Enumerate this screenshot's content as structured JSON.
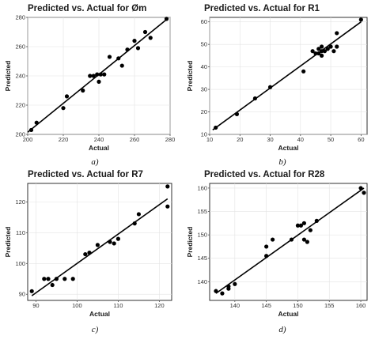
{
  "chart_data": [
    {
      "type": "scatter",
      "title": "Predicted vs. Actual for Øm",
      "xlabel": "Actual",
      "ylabel": "Predicted",
      "caption": "a)",
      "xlim": [
        200,
        280
      ],
      "ylim": [
        200,
        280
      ],
      "xticks": [
        200,
        220,
        240,
        260,
        280
      ],
      "yticks": [
        200,
        220,
        240,
        260,
        280
      ],
      "xticklabels": [
        "200",
        "220",
        "240",
        "260",
        "280"
      ],
      "yticklabels": [
        "200",
        "220",
        "240",
        "260",
        "280"
      ],
      "grid": true,
      "fit_line": {
        "x": [
          200,
          279
        ],
        "y": [
          201.5,
          279.5
        ]
      },
      "points": [
        {
          "x": 202,
          "y": 203
        },
        {
          "x": 205,
          "y": 208
        },
        {
          "x": 220,
          "y": 218
        },
        {
          "x": 222,
          "y": 226
        },
        {
          "x": 231,
          "y": 230
        },
        {
          "x": 235,
          "y": 240
        },
        {
          "x": 237,
          "y": 240
        },
        {
          "x": 239,
          "y": 241
        },
        {
          "x": 240,
          "y": 236
        },
        {
          "x": 241,
          "y": 241
        },
        {
          "x": 243,
          "y": 241
        },
        {
          "x": 246,
          "y": 253
        },
        {
          "x": 251,
          "y": 252
        },
        {
          "x": 253,
          "y": 247
        },
        {
          "x": 256,
          "y": 258
        },
        {
          "x": 260,
          "y": 264
        },
        {
          "x": 262,
          "y": 259
        },
        {
          "x": 266,
          "y": 270
        },
        {
          "x": 269,
          "y": 266
        },
        {
          "x": 278,
          "y": 279
        }
      ]
    },
    {
      "type": "scatter",
      "title": "Predicted vs. Actual for R1",
      "xlabel": "Actual",
      "ylabel": "Predicted",
      "caption": "b)",
      "xlim": [
        10,
        62
      ],
      "ylim": [
        10,
        62
      ],
      "xticks": [
        10,
        20,
        30,
        40,
        50,
        60
      ],
      "yticks": [
        10,
        20,
        30,
        40,
        50,
        60
      ],
      "xticklabels": [
        "10",
        "20",
        "30",
        "40",
        "50",
        "60"
      ],
      "yticklabels": [
        "10",
        "20",
        "30",
        "40",
        "50",
        "60"
      ],
      "grid": true,
      "fit_line": {
        "x": [
          11,
          60
        ],
        "y": [
          12,
          60
        ]
      },
      "points": [
        {
          "x": 12,
          "y": 13
        },
        {
          "x": 19,
          "y": 19
        },
        {
          "x": 25,
          "y": 26
        },
        {
          "x": 30,
          "y": 31
        },
        {
          "x": 41,
          "y": 38
        },
        {
          "x": 44,
          "y": 47
        },
        {
          "x": 45,
          "y": 46
        },
        {
          "x": 46,
          "y": 46
        },
        {
          "x": 46,
          "y": 48
        },
        {
          "x": 47,
          "y": 49
        },
        {
          "x": 47,
          "y": 47
        },
        {
          "x": 47,
          "y": 45
        },
        {
          "x": 48,
          "y": 47
        },
        {
          "x": 49,
          "y": 48
        },
        {
          "x": 50,
          "y": 49
        },
        {
          "x": 51,
          "y": 47
        },
        {
          "x": 52,
          "y": 55
        },
        {
          "x": 52,
          "y": 49
        },
        {
          "x": 60,
          "y": 61
        }
      ]
    },
    {
      "type": "scatter",
      "title": "Predicted vs. Actual for R7",
      "xlabel": "Actual",
      "ylabel": "Predicted",
      "caption": "c)",
      "xlim": [
        88,
        123
      ],
      "ylim": [
        88,
        126
      ],
      "xticks": [
        90,
        100,
        110,
        120
      ],
      "yticks": [
        90,
        100,
        110,
        120
      ],
      "xticklabels": [
        "90",
        "100",
        "110",
        "120"
      ],
      "yticklabels": [
        "90",
        "100",
        "110",
        "120"
      ],
      "grid": true,
      "fit_line": {
        "x": [
          89,
          122
        ],
        "y": [
          89.5,
          121
        ]
      },
      "points": [
        {
          "x": 89,
          "y": 91
        },
        {
          "x": 92,
          "y": 95
        },
        {
          "x": 93,
          "y": 95
        },
        {
          "x": 94,
          "y": 93
        },
        {
          "x": 95,
          "y": 95
        },
        {
          "x": 97,
          "y": 95
        },
        {
          "x": 99,
          "y": 95
        },
        {
          "x": 102,
          "y": 103
        },
        {
          "x": 103,
          "y": 103.5
        },
        {
          "x": 105,
          "y": 106
        },
        {
          "x": 108,
          "y": 107
        },
        {
          "x": 109,
          "y": 106.5
        },
        {
          "x": 110,
          "y": 108
        },
        {
          "x": 114,
          "y": 113
        },
        {
          "x": 115,
          "y": 116
        },
        {
          "x": 122,
          "y": 118.5
        },
        {
          "x": 122,
          "y": 125
        }
      ]
    },
    {
      "type": "scatter",
      "title": "Predicted vs. Actual for R28",
      "xlabel": "Actual",
      "ylabel": "Predicted",
      "caption": "d)",
      "xlim": [
        136,
        161
      ],
      "ylim": [
        136,
        161
      ],
      "xticks": [
        140,
        145,
        150,
        155,
        160
      ],
      "yticks": [
        140,
        145,
        150,
        155,
        160
      ],
      "xticklabels": [
        "140",
        "145",
        "150",
        "155",
        "160"
      ],
      "yticklabels": [
        "140",
        "145",
        "150",
        "155",
        "160"
      ],
      "grid": true,
      "fit_line": {
        "x": [
          137,
          160.5
        ],
        "y": [
          137.5,
          160
        ]
      },
      "points": [
        {
          "x": 137,
          "y": 138
        },
        {
          "x": 138,
          "y": 137.5
        },
        {
          "x": 139,
          "y": 139
        },
        {
          "x": 139,
          "y": 138.5
        },
        {
          "x": 140,
          "y": 139.5
        },
        {
          "x": 145,
          "y": 145.5
        },
        {
          "x": 145,
          "y": 147.5
        },
        {
          "x": 146,
          "y": 149
        },
        {
          "x": 149,
          "y": 149
        },
        {
          "x": 150,
          "y": 152
        },
        {
          "x": 150.5,
          "y": 152
        },
        {
          "x": 151,
          "y": 149
        },
        {
          "x": 151,
          "y": 152.5
        },
        {
          "x": 151.5,
          "y": 148.5
        },
        {
          "x": 152,
          "y": 151
        },
        {
          "x": 153,
          "y": 153
        },
        {
          "x": 160,
          "y": 160
        },
        {
          "x": 160.5,
          "y": 159
        }
      ]
    }
  ],
  "colors": {
    "points": "#000000",
    "fit_line": "#000000",
    "grid": "#e3e3e3",
    "frame": "#1a1a1a"
  }
}
